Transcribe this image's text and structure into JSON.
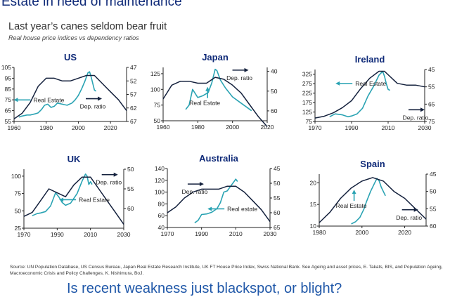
{
  "header": {
    "top_title": "Estate in need of maintenance",
    "main_title": "Last year’s canes seldom bear fruit",
    "subtitle": "Real house price indices vs dependency ratios"
  },
  "footer": {
    "source": "Source: UN Population Database, US Census Bureau, Japan Real Estate Research Institute, UK FT House Price Index, Swiss National Bank. See Ageing and asset prices, E. Takats, BIS, and Population Ageing, Macroeconomic Crisis and Policy Challenges, K. Nishimura, BoJ.",
    "question": "Is recent weakness just blackspot, or blight?"
  },
  "colors": {
    "real_estate": "#2aa3b3",
    "dependency": "#14213d",
    "title": "#0f2a78",
    "arrow": "#1f4e99"
  },
  "chart_data": [
    {
      "type": "line",
      "title": "US",
      "xlim": [
        1960,
        2030
      ],
      "xticks": [
        1960,
        1980,
        2000,
        2020
      ],
      "ylim_left": [
        55,
        105
      ],
      "yticks_left": [
        55,
        65,
        75,
        85,
        95,
        105
      ],
      "ylim_right": [
        67,
        47
      ],
      "yticks_right": [
        47,
        52,
        57,
        62,
        67
      ],
      "right_axis_inverted": true,
      "series": [
        {
          "name": "Real Estate",
          "axis": "left",
          "x": [
            1963,
            1965,
            1968,
            1970,
            1973,
            1975,
            1977,
            1979,
            1981,
            1983,
            1985,
            1987,
            1990,
            1993,
            1996,
            1998,
            2000,
            2002,
            2004,
            2006,
            2007,
            2008,
            2009,
            2010,
            2011
          ],
          "y": [
            59,
            60,
            61,
            61,
            62,
            63,
            66,
            70,
            71,
            68,
            69,
            72,
            71,
            70,
            72,
            75,
            79,
            85,
            92,
            100,
            101,
            96,
            90,
            84,
            83
          ]
        },
        {
          "name": "Dep. ratio",
          "axis": "right",
          "x": [
            1960,
            1965,
            1970,
            1975,
            1980,
            1985,
            1990,
            1995,
            2000,
            2005,
            2010,
            2015,
            2020,
            2025,
            2030
          ],
          "y": [
            66,
            64,
            60,
            54,
            51,
            51,
            52,
            52,
            51,
            50,
            50,
            53,
            56,
            59,
            63
          ]
        }
      ],
      "annotations": [
        {
          "text": "Real Estate",
          "x": 1972,
          "y": 73,
          "arrow": "left"
        },
        {
          "text": "Dep. ratio",
          "x": 2009,
          "y": 67,
          "arrow": "right"
        }
      ]
    },
    {
      "type": "line",
      "title": "Japan",
      "xlim": [
        1960,
        2020
      ],
      "xticks": [
        1960,
        1980,
        2000,
        2020
      ],
      "ylim_left": [
        50,
        135
      ],
      "yticks_left": [
        50,
        75,
        100,
        125
      ],
      "ylim_right": [
        65,
        38
      ],
      "yticks_right": [
        40,
        50,
        60
      ],
      "right_axis_inverted": true,
      "series": [
        {
          "name": "Real Estate",
          "axis": "left",
          "x": [
            1973,
            1975,
            1977,
            1980,
            1983,
            1986,
            1988,
            1990,
            1991,
            1993,
            1996,
            2000,
            2004,
            2008,
            2011
          ],
          "y": [
            68,
            75,
            100,
            87,
            90,
            95,
            110,
            132,
            130,
            115,
            102,
            88,
            80,
            72,
            66
          ]
        },
        {
          "name": "Dep. ratio",
          "axis": "right",
          "x": [
            1960,
            1965,
            1970,
            1975,
            1980,
            1985,
            1990,
            1995,
            2000,
            2005,
            2010,
            2015,
            2020
          ],
          "y": [
            54,
            47,
            45,
            45,
            46,
            46,
            43,
            44,
            47,
            51,
            57,
            63,
            68
          ]
        }
      ],
      "annotations": [
        {
          "text": "Dep. ratio",
          "x": 2004,
          "y": 115,
          "arrow": "right"
        },
        {
          "text": "Real Estate",
          "x": 1984,
          "y": 75,
          "arrow": "up"
        }
      ]
    },
    {
      "type": "line",
      "title": "Ireland",
      "xlim": [
        1970,
        2030
      ],
      "xticks": [
        1970,
        1990,
        2010,
        2030
      ],
      "ylim_left": [
        75,
        350
      ],
      "yticks_left": [
        75,
        125,
        175,
        225,
        275,
        325
      ],
      "ylim_right": [
        75,
        45
      ],
      "yticks_right": [
        45,
        55,
        65,
        75
      ],
      "right_axis_inverted": true,
      "series": [
        {
          "name": "Real Estate",
          "axis": "left",
          "x": [
            1978,
            1981,
            1985,
            1988,
            1990,
            1993,
            1996,
            1999,
            2002,
            2005,
            2007,
            2008,
            2009,
            2010,
            2011
          ],
          "y": [
            100,
            115,
            110,
            100,
            104,
            115,
            145,
            210,
            260,
            320,
            340,
            315,
            275,
            245,
            240
          ]
        },
        {
          "name": "Dep. ratio",
          "axis": "right",
          "x": [
            1970,
            1975,
            1980,
            1985,
            1990,
            1995,
            2000,
            2005,
            2008,
            2015,
            2020,
            2025,
            2030
          ],
          "y": [
            73,
            72,
            70,
            67,
            63,
            56,
            50,
            46,
            46,
            53,
            54,
            54,
            55
          ]
        }
      ],
      "annotations": [
        {
          "text": "Real Estate",
          "x": 1992,
          "y": 265,
          "arrow": "left"
        },
        {
          "text": "Dep. ratio",
          "x": 2025,
          "y": 85,
          "arrow": "right"
        }
      ]
    },
    {
      "type": "line",
      "title": "UK",
      "xlim": [
        1970,
        2030
      ],
      "xticks": [
        1970,
        1990,
        2010,
        2030
      ],
      "ylim_left": [
        25,
        110
      ],
      "yticks_left": [
        25,
        50,
        75,
        100
      ],
      "ylim_right": [
        65,
        50
      ],
      "yticks_right": [
        50,
        55,
        60
      ],
      "right_axis_inverted": true,
      "series": [
        {
          "name": "Real Estate",
          "axis": "left",
          "x": [
            1975,
            1978,
            1980,
            1983,
            1986,
            1989,
            1991,
            1993,
            1995,
            1998,
            2002,
            2005,
            2007,
            2008,
            2009,
            2010,
            2011
          ],
          "y": [
            43,
            46,
            47,
            49,
            57,
            76,
            70,
            62,
            58,
            61,
            75,
            93,
            103,
            100,
            88,
            92,
            88
          ]
        },
        {
          "name": "Dep. ratio",
          "axis": "right",
          "x": [
            1970,
            1975,
            1980,
            1985,
            1990,
            1995,
            2000,
            2005,
            2010,
            2015,
            2020,
            2025,
            2030
          ],
          "y": [
            62,
            61,
            58,
            55,
            56,
            57,
            54,
            52,
            52,
            55,
            58,
            61,
            64
          ]
        }
      ],
      "annotations": [
        {
          "text": "Real Estate",
          "x": 2003,
          "y": 63,
          "arrow": "left"
        },
        {
          "text": "Dep. ratio",
          "x": 2021,
          "y": 88,
          "arrow": "right"
        }
      ]
    },
    {
      "type": "line",
      "title": "Australia",
      "xlim": [
        1970,
        2030
      ],
      "xticks": [
        1970,
        1990,
        2010,
        2030
      ],
      "ylim_left": [
        40,
        140
      ],
      "yticks_left": [
        40,
        60,
        80,
        100,
        120,
        140
      ],
      "ylim_right": [
        65,
        45
      ],
      "yticks_right": [
        45,
        50,
        55,
        60,
        65
      ],
      "right_axis_inverted": true,
      "series": [
        {
          "name": "Real estate",
          "axis": "left",
          "x": [
            1986,
            1988,
            1990,
            1993,
            1996,
            1999,
            2001,
            2003,
            2005,
            2007,
            2009,
            2010,
            2011
          ],
          "y": [
            48,
            52,
            62,
            63,
            66,
            72,
            82,
            100,
            102,
            110,
            118,
            122,
            118
          ]
        },
        {
          "name": "Dep. ratio",
          "axis": "right",
          "x": [
            1970,
            1975,
            1980,
            1985,
            1990,
            1995,
            2000,
            2005,
            2010,
            2015,
            2020,
            2025,
            2030
          ],
          "y": [
            60,
            58,
            55,
            53,
            52,
            52,
            52,
            51,
            51,
            53,
            56,
            59,
            63
          ]
        }
      ],
      "annotations": [
        {
          "text": "Dep. ratio",
          "x": 1986,
          "y": 97,
          "arrow": "right"
        },
        {
          "text": "Real estate",
          "x": 2005,
          "y": 68,
          "arrow": "left"
        }
      ]
    },
    {
      "type": "line",
      "title": "Spain",
      "xlim": [
        1980,
        2030
      ],
      "xticks": [
        1980,
        2000,
        2020
      ],
      "ylim_left": [
        10,
        22
      ],
      "yticks_left": [
        10,
        15,
        20
      ],
      "ylim_right": [
        60,
        45
      ],
      "yticks_right": [
        45,
        50,
        55,
        60
      ],
      "right_axis_inverted": true,
      "series": [
        {
          "name": "Real Estate",
          "axis": "left",
          "x": [
            1995,
            1997,
            1999,
            2001,
            2002,
            2004,
            2006,
            2007,
            2008,
            2009,
            2010,
            2011
          ],
          "y": [
            10.5,
            11,
            12,
            14,
            15.5,
            18,
            20,
            21,
            20.5,
            19,
            18,
            17
          ]
        },
        {
          "name": "Dep. ratio",
          "axis": "right",
          "x": [
            1980,
            1985,
            1990,
            1995,
            2000,
            2005,
            2010,
            2015,
            2020,
            2025,
            2030
          ],
          "y": [
            59,
            56,
            52,
            49,
            47,
            46,
            47,
            50,
            52,
            55,
            58
          ]
        }
      ],
      "annotations": [
        {
          "text": "Real Estate",
          "x": 1995,
          "y": 14.2,
          "arrow": "up"
        },
        {
          "text": "Dep. ratio",
          "x": 2022,
          "y": 11.5,
          "arrow": "right"
        }
      ]
    }
  ]
}
